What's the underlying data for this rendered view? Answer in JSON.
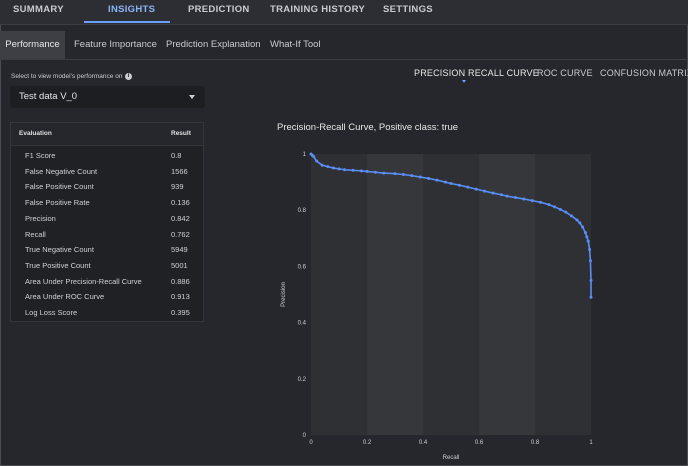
{
  "top_tabs": [
    "SUMMARY",
    "INSIGHTS",
    "PREDICTION",
    "TRAINING HISTORY",
    "SETTINGS"
  ],
  "active_top_tab": "INSIGHTS",
  "sub_tabs": [
    "Performance",
    "Feature Importance",
    "Prediction Explanation",
    "What-If Tool"
  ],
  "active_sub_tab": "Performance",
  "selector": {
    "label": "Select to view model's performance on",
    "value": "Test data V_0"
  },
  "table": {
    "headers": [
      "Evaluation",
      "Result"
    ],
    "rows": [
      [
        "F1 Score",
        "0.8"
      ],
      [
        "False Negative Count",
        "1566"
      ],
      [
        "False Positive Count",
        "939"
      ],
      [
        "False Positive Rate",
        "0.136"
      ],
      [
        "Precision",
        "0.842"
      ],
      [
        "Recall",
        "0.762"
      ],
      [
        "True Negative Count",
        "5949"
      ],
      [
        "True Positive Count",
        "5001"
      ],
      [
        "Area Under Precision-Recall Curve",
        "0.886"
      ],
      [
        "Area Under ROC Curve",
        "0.913"
      ],
      [
        "Log Loss Score",
        "0.395"
      ]
    ]
  },
  "chart_tabs": [
    "PRECISION RECALL CURVE",
    "ROC CURVE",
    "CONFUSION MATRIX"
  ],
  "active_chart_tab": "PRECISION RECALL CURVE",
  "chart_data": {
    "type": "line",
    "title": "Precision-Recall Curve, Positive class: true",
    "xlabel": "Recall",
    "ylabel": "Precision",
    "xlim": [
      0,
      1
    ],
    "ylim": [
      0,
      1
    ],
    "xticks": [
      "0",
      "0.2",
      "0.4",
      "0.6",
      "0.8",
      "1"
    ],
    "yticks": [
      "0",
      "0.2",
      "0.4",
      "0.6",
      "0.8",
      "1"
    ],
    "color": "#5b8ef5",
    "series": [
      {
        "x": [
          0.0,
          0.005,
          0.01,
          0.02,
          0.04,
          0.06,
          0.08,
          0.1,
          0.12,
          0.15,
          0.18,
          0.2,
          0.23,
          0.26,
          0.3,
          0.33,
          0.36,
          0.39,
          0.42,
          0.45,
          0.48,
          0.5,
          0.53,
          0.56,
          0.59,
          0.62,
          0.65,
          0.68,
          0.7,
          0.73,
          0.76,
          0.79,
          0.82,
          0.85,
          0.87,
          0.89,
          0.91,
          0.93,
          0.95,
          0.96,
          0.97,
          0.98,
          0.985,
          0.99,
          0.995,
          0.998,
          1.0,
          1.0
        ],
        "y": [
          1.0,
          0.995,
          0.99,
          0.975,
          0.96,
          0.955,
          0.95,
          0.947,
          0.944,
          0.942,
          0.94,
          0.938,
          0.935,
          0.932,
          0.93,
          0.927,
          0.923,
          0.918,
          0.913,
          0.907,
          0.9,
          0.895,
          0.889,
          0.882,
          0.875,
          0.868,
          0.861,
          0.855,
          0.85,
          0.845,
          0.84,
          0.834,
          0.828,
          0.82,
          0.812,
          0.803,
          0.793,
          0.78,
          0.765,
          0.755,
          0.74,
          0.72,
          0.705,
          0.69,
          0.66,
          0.62,
          0.55,
          0.49
        ]
      }
    ]
  }
}
